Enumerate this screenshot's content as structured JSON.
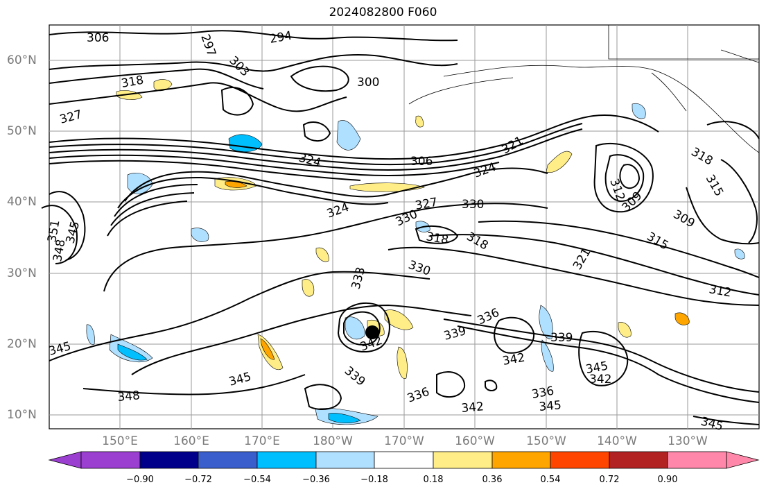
{
  "title": "2024082800 F060",
  "lat_axis": [
    {
      "label": "60°N"
    },
    {
      "label": "50°N"
    },
    {
      "label": "40°N"
    },
    {
      "label": "30°N"
    },
    {
      "label": "20°N"
    },
    {
      "label": "10°N"
    }
  ],
  "lon_axis": [
    {
      "label": "150°E"
    },
    {
      "label": "160°E"
    },
    {
      "label": "170°E"
    },
    {
      "label": "180°W"
    },
    {
      "label": "170°W"
    },
    {
      "label": "160°W"
    },
    {
      "label": "150°W"
    },
    {
      "label": "140°W"
    },
    {
      "label": "130°W"
    }
  ],
  "contour_labels": [
    "306",
    "294",
    "297",
    "303",
    "300",
    "318",
    "327",
    "324",
    "306",
    "321",
    "324",
    "327",
    "330",
    "330",
    "324",
    "318",
    "318",
    "330",
    "333",
    "345",
    "348",
    "351",
    "315",
    "312",
    "309",
    "312",
    "309",
    "315",
    "318",
    "321",
    "336",
    "339",
    "339",
    "342",
    "342",
    "339",
    "345",
    "348",
    "345",
    "336",
    "342",
    "336",
    "345",
    "345",
    "342",
    "345"
  ],
  "colorbar": {
    "ticks": [
      "−0.90",
      "−0.72",
      "−0.54",
      "−0.36",
      "−0.18",
      "0.18",
      "0.36",
      "0.54",
      "0.72",
      "0.90"
    ],
    "colors": [
      "#9b3fd0",
      "#00008b",
      "#3a5fcd",
      "#00bfff",
      "#b0e0ff",
      "#ffffff",
      "#ffee88",
      "#ffa500",
      "#ff4500",
      "#b22222",
      "#ff88aa"
    ]
  },
  "storm_marker": "black-dot"
}
